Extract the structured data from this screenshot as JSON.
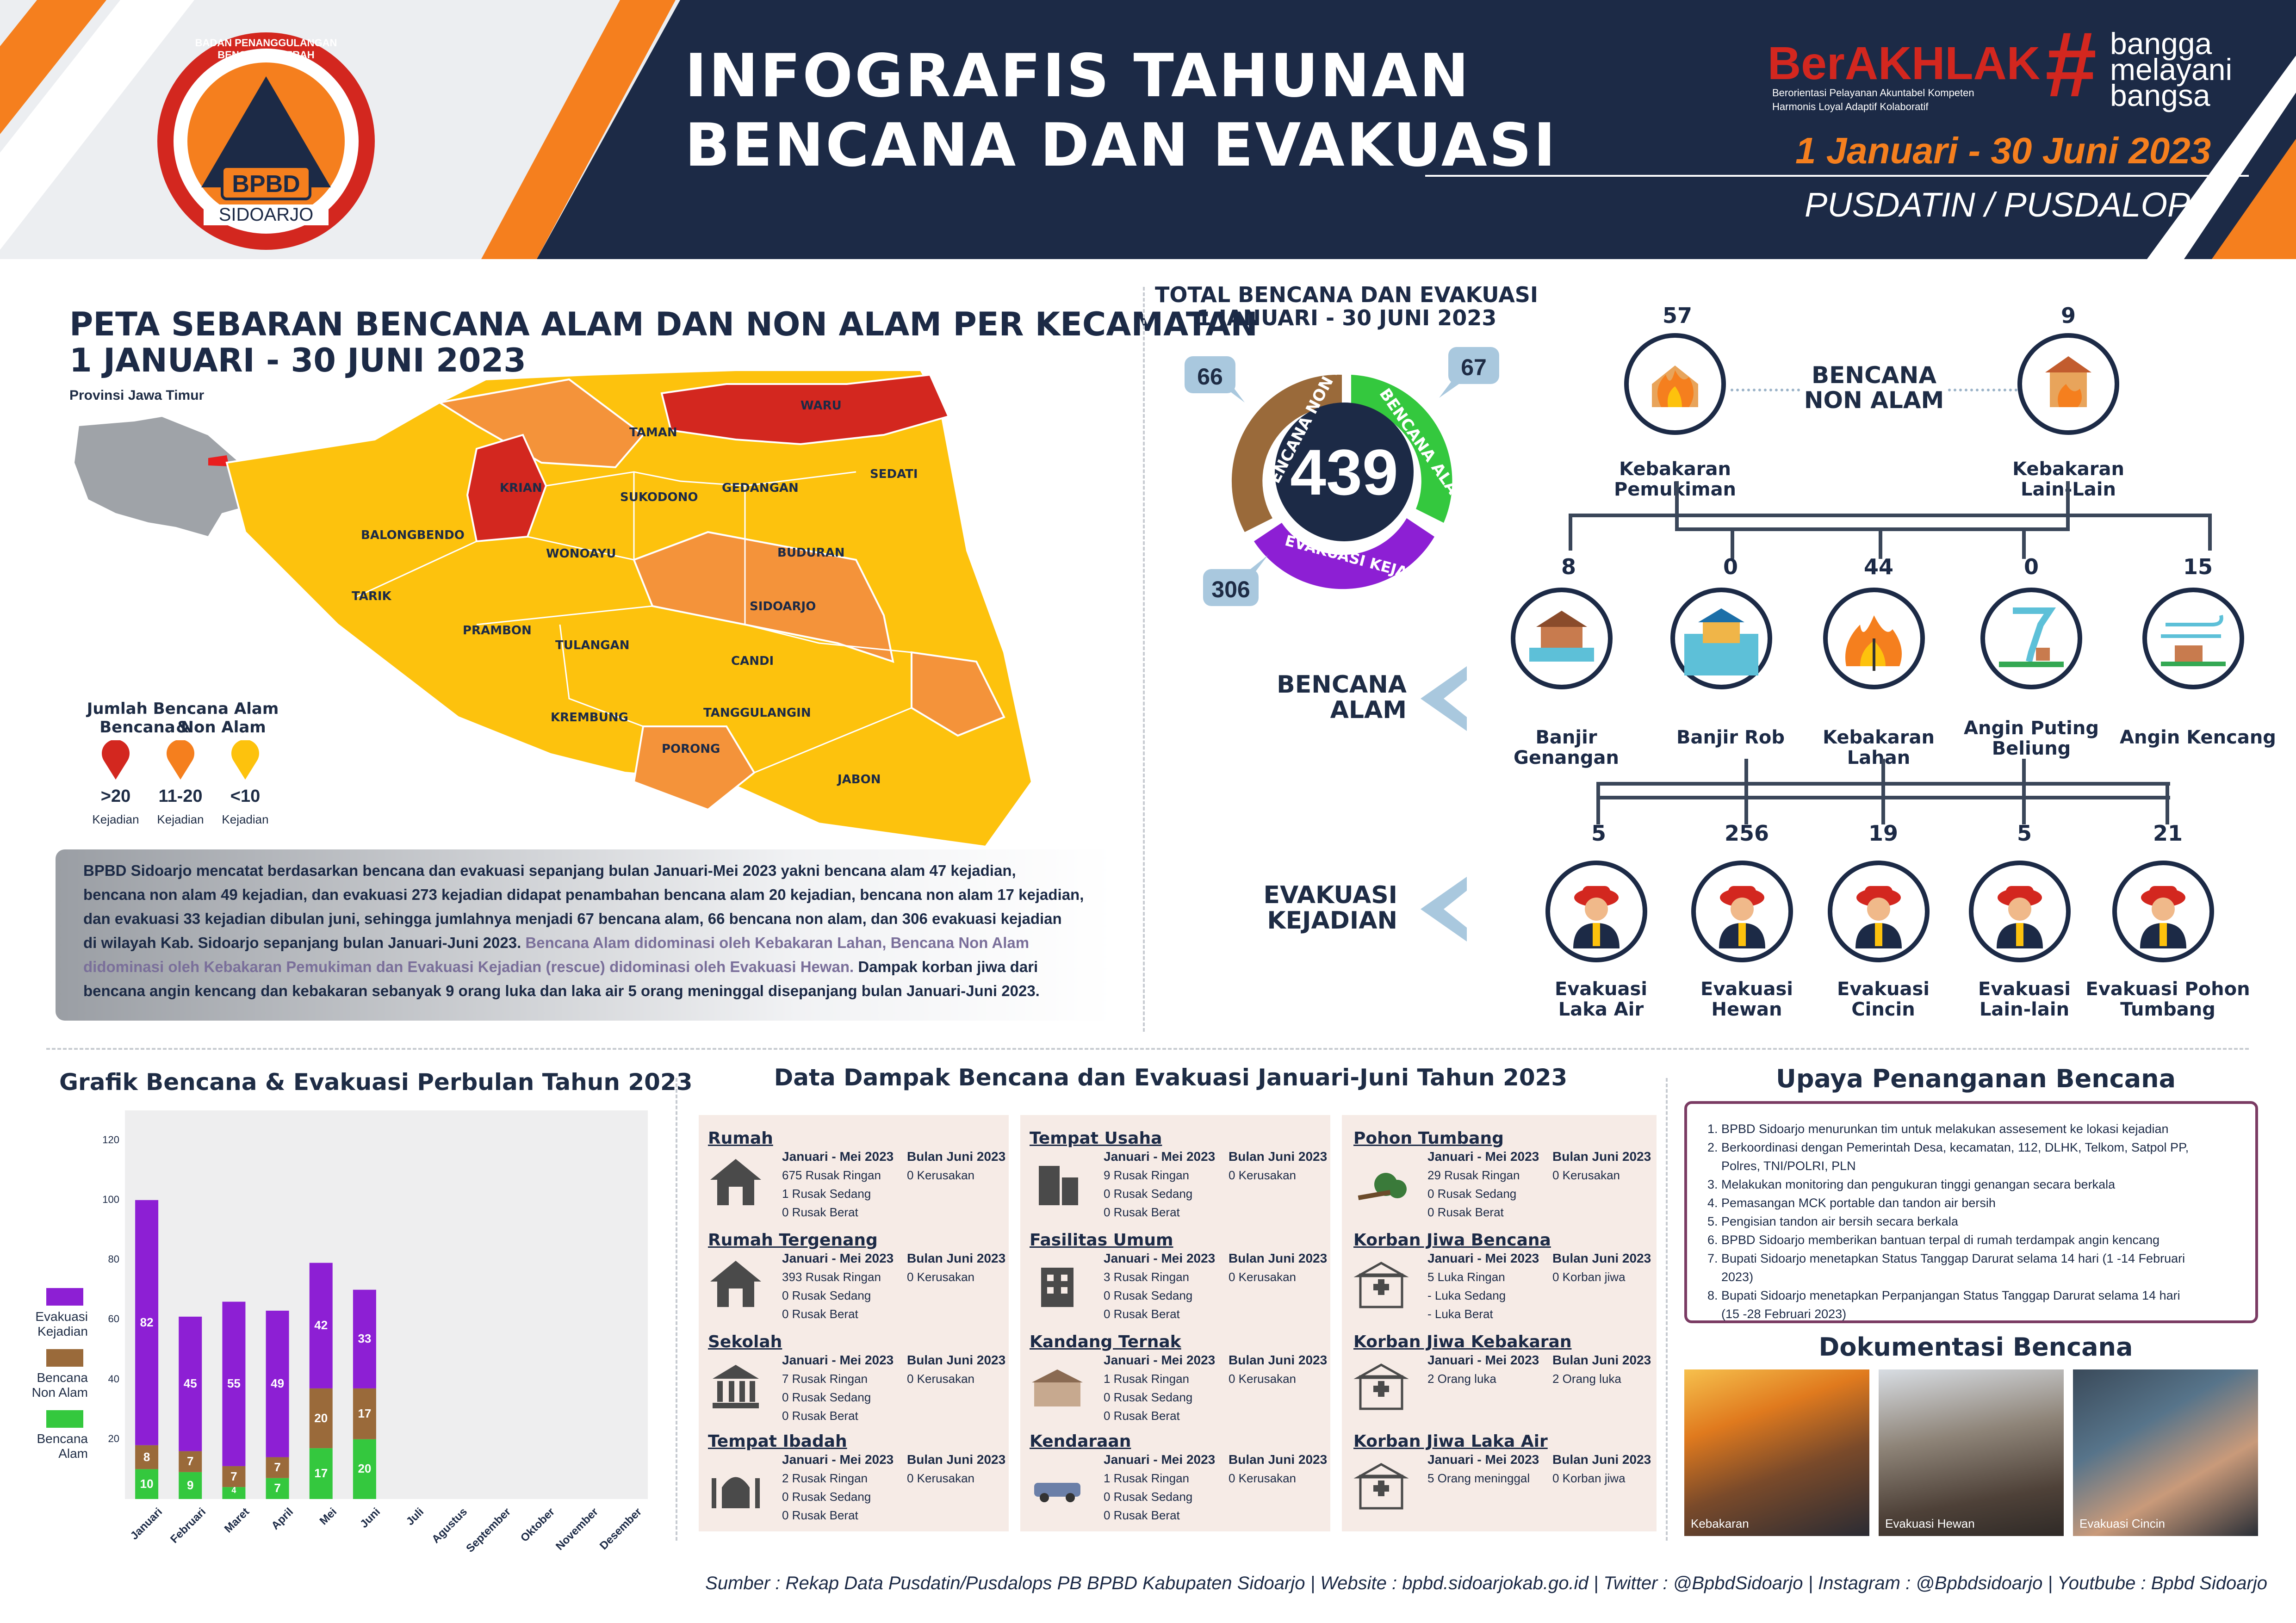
{
  "header": {
    "logo_ring": "BADAN PENANGGULANGAN BENCANA DAERAH",
    "logo_name": "BPBD",
    "logo_city": "SIDOARJO",
    "title_line1": "INFOGRAFIS TAHUNAN",
    "title_line2": "BENCANA DAN EVAKUASI",
    "berakhlak": "BerAKHLAK",
    "berakhlak_sub1": "Berorientasi Pelayanan Akuntabel Kompeten",
    "berakhlak_sub2": "Harmonis Loyal Adaptif Kolaboratif",
    "bangga_hash": "#",
    "bangga1": "bangga",
    "bangga2": "melayani",
    "bangga3": "bangsa",
    "period": "1 Januari - 30 Juni 2023",
    "division": "PUSDATIN / PUSDALOPS"
  },
  "map": {
    "title1": "PETA SEBARAN BENCANA ALAM DAN NON ALAM PER KECAMATAN",
    "title2": "1 JANUARI - 30 JUNI 2023",
    "province": "Provinsi Jawa Timur",
    "districts": [
      "TAMAN",
      "WARU",
      "SEDATI",
      "KRIAN",
      "SUKODONO",
      "GEDANGAN",
      "BALONGBENDO",
      "WONOAYU",
      "BUDURAN",
      "TARIK",
      "SIDOARJO",
      "PRAMBON",
      "TULANGAN",
      "CANDI",
      "KREMBUNG",
      "TANGGULANGIN",
      "PORONG",
      "JABON"
    ],
    "legend_title1": "Jumlah Bencana Alam &",
    "legend_title2": "Bencana Non Alam",
    "legend": [
      {
        "range": "&gt;20",
        "unit": "Kejadian",
        "color": "#d3271f"
      },
      {
        "range": "11-20",
        "unit": "Kejadian",
        "color": "#f57f1e"
      },
      {
        "range": "<10",
        "unit": "Kejadian",
        "color": "#fdc20d"
      }
    ],
    "colors": {
      "red": "#d3271f",
      "orange": "#f4933a",
      "yellow": "#fdc20d"
    }
  },
  "summary": {
    "p1": "BPBD Sidoarjo mencatat berdasarkan bencana dan evakuasi sepanjang bulan Januari-Mei 2023 yakni bencana alam 47 kejadian,",
    "p2": "bencana non alam 49 kejadian, dan evakuasi 273 kejadian didapat penambahan bencana alam 20 kejadian, bencana non alam 17 kejadian,",
    "p3": "dan evakuasi 33 kejadian dibulan juni, sehingga jumlahnya menjadi 67 bencana alam, 66 bencana non alam, dan 306 evakuasi kejadian",
    "p4a": "di wilayah Kab. Sidoarjo sepanjang bulan Januari-Juni 2023. ",
    "p4b": "Bencana Alam didominasi oleh Kebakaran Lahan, Bencana Non Alam",
    "p5a": "didominasi oleh Kebakaran Pemukiman dan Evakuasi Kejadian (rescue) didominasi oleh Evakuasi Hewan.",
    "p5b": " Dampak korban jiwa dari",
    "p6": "bencana angin kencang dan kebakaran sebanyak 9 orang luka dan laka air 5 orang meninggal disepanjang bulan Januari-Juni 2023."
  },
  "total": {
    "title1": "TOTAL BENCANA DAN EVAKUASI",
    "title2": "1 JANUARI - 30 JUNI 2023",
    "value": "439",
    "non_alam_label": "BENCANA NON ALAM",
    "alam_label": "BENCANA ALAM",
    "evakuasi_label": "EVAKUASI KEJADIAN",
    "non_alam": "66",
    "alam": "67",
    "evakuasi": "306",
    "colors": {
      "non_alam": "#9a6a3a",
      "alam": "#34c83e",
      "evakuasi": "#8d1fd4"
    }
  },
  "non_alam": {
    "label1": "BENCANA",
    "label2": "NON ALAM",
    "items": [
      {
        "count": "57",
        "name": "Kebakaran Pemukiman",
        "icon": "house-fire-icon"
      },
      {
        "count": "9",
        "name": "Kebakaran Lain-Lain",
        "icon": "building-fire-icon"
      }
    ]
  },
  "alam": {
    "label1": "BENCANA",
    "label2": "ALAM",
    "items": [
      {
        "count": "8",
        "name": "Banjir Genangan",
        "icon": "flood-icon"
      },
      {
        "count": "0",
        "name": "Banjir Rob",
        "icon": "tidal-flood-icon"
      },
      {
        "count": "44",
        "name": "Kebakaran Lahan",
        "icon": "land-fire-icon"
      },
      {
        "count": "0",
        "name": "Angin Puting",
        "name2": "Beliung",
        "icon": "tornado-icon"
      },
      {
        "count": "15",
        "name": "Angin Kencang",
        "icon": "wind-icon"
      }
    ]
  },
  "evakuasi": {
    "label1": "EVAKUASI",
    "label2": "KEJADIAN",
    "items": [
      {
        "count": "5",
        "name": "Evakuasi",
        "name2": "Laka Air"
      },
      {
        "count": "256",
        "name": "Evakuasi",
        "name2": "Hewan"
      },
      {
        "count": "19",
        "name": "Evakuasi",
        "name2": "Cincin"
      },
      {
        "count": "5",
        "name": "Evakuasi",
        "name2": "Lain-lain"
      },
      {
        "count": "21",
        "name": "Evakuasi Pohon",
        "name2": "Tumbang"
      }
    ]
  },
  "chart": {
    "title": "Grafik Bencana & Evakuasi Perbulan Tahun 2023"
  },
  "chart_data": {
    "type": "bar",
    "stacked": true,
    "categories": [
      "Januari",
      "Februari",
      "Maret",
      "April",
      "Mei",
      "Juni",
      "Juli",
      "Agustus",
      "September",
      "Oktober",
      "November",
      "Desember"
    ],
    "series": [
      {
        "name": "Bencana Alam",
        "color": "#34c83e",
        "values": [
          10,
          9,
          4,
          7,
          17,
          20,
          null,
          null,
          null,
          null,
          null,
          null
        ]
      },
      {
        "name": "Bencana Non Alam",
        "color": "#9a6a3a",
        "values": [
          8,
          7,
          7,
          7,
          20,
          17,
          null,
          null,
          null,
          null,
          null,
          null
        ]
      },
      {
        "name": "Evakuasi Kejadian",
        "color": "#8d1fd4",
        "values": [
          82,
          45,
          55,
          49,
          42,
          33,
          null,
          null,
          null,
          null,
          null,
          null
        ]
      }
    ],
    "ylim": [
      0,
      130
    ],
    "yticks": [
      20,
      40,
      60,
      80,
      100,
      120
    ],
    "legend_position": "left",
    "grid": false
  },
  "legend_labels": {
    "evakuasi1": "Evakuasi",
    "evakuasi2": "Kejadian",
    "nonalam1": "Bencana",
    "nonalam2": "Non Alam",
    "alam1": "Bencana",
    "alam2": "Alam"
  },
  "dampak": {
    "title": "Data Dampak Bencana dan Evakuasi Januari-Juni Tahun 2023",
    "head_a": "Januari - Mei 2023",
    "head_b": "Bulan Juni 2023",
    "col1": [
      {
        "title": "Rumah",
        "icon": "house-icon",
        "a": [
          "675 Rusak Ringan",
          "1 Rusak Sedang",
          "0 Rusak Berat"
        ],
        "b": [
          "0 Kerusakan"
        ]
      },
      {
        "title": "Rumah Tergenang",
        "icon": "house-icon",
        "a": [
          "393 Rusak Ringan",
          "0 Rusak Sedang",
          "0 Rusak Berat"
        ],
        "b": [
          "0 Kerusakan"
        ]
      },
      {
        "title": "Sekolah",
        "icon": "school-icon",
        "a": [
          "7 Rusak Ringan",
          "0 Rusak Sedang",
          "0 Rusak Berat"
        ],
        "b": [
          "0 Kerusakan"
        ]
      },
      {
        "title": "Tempat Ibadah",
        "icon": "mosque-icon",
        "a": [
          "2 Rusak Ringan",
          "0 Rusak Sedang",
          "0 Rusak Berat"
        ],
        "b": [
          "0 Kerusakan"
        ]
      }
    ],
    "col2": [
      {
        "title": "Tempat Usaha",
        "icon": "office-icon",
        "a": [
          "9 Rusak Ringan",
          "0 Rusak Sedang",
          "0 Rusak Berat"
        ],
        "b": [
          "0 Kerusakan"
        ]
      },
      {
        "title": "Fasilitas Umum",
        "icon": "building-icon",
        "a": [
          "3 Rusak Ringan",
          "0 Rusak Sedang",
          "0 Rusak Berat"
        ],
        "b": [
          "0 Kerusakan"
        ]
      },
      {
        "title": "Kandang Ternak",
        "icon": "barn-icon",
        "a": [
          "1 Rusak Ringan",
          "0 Rusak Sedang",
          "0 Rusak Berat"
        ],
        "b": [
          "0 Kerusakan"
        ]
      },
      {
        "title": "Kendaraan",
        "icon": "vehicle-icon",
        "a": [
          "1 Rusak Ringan",
          "0 Rusak Sedang",
          "0 Rusak Berat"
        ],
        "b": [
          "0 Kerusakan"
        ]
      }
    ],
    "col3": [
      {
        "title": "Pohon Tumbang",
        "icon": "fallen-tree-icon",
        "a": [
          "29 Rusak Ringan",
          "0 Rusak Sedang",
          "0 Rusak Berat"
        ],
        "b": [
          "0 Kerusakan"
        ]
      },
      {
        "title": "Korban Jiwa Bencana",
        "icon": "hospital-icon",
        "a": [
          "5 Luka Ringan",
          "- Luka Sedang",
          "- Luka Berat"
        ],
        "b": [
          "0 Korban jiwa"
        ]
      },
      {
        "title": "Korban Jiwa Kebakaran",
        "icon": "hospital-icon",
        "a": [
          "2 Orang luka"
        ],
        "b": [
          "2 Orang luka"
        ]
      },
      {
        "title": "Korban Jiwa Laka Air",
        "icon": "hospital-icon",
        "a": [
          "5 Orang meninggal"
        ],
        "b": [
          "0 Korban jiwa"
        ]
      }
    ]
  },
  "upaya": {
    "title": "Upaya Penanganan Bencana",
    "items": [
      "1. BPBD Sidoarjo menurunkan tim untuk melakukan assesement ke lokasi kejadian",
      "2. Berkoordinasi dengan Pemerintah Desa, kecamatan, 112, DLHK, Telkom, Satpol PP,",
      "    Polres, TNI/POLRI, PLN",
      "3. Melakukan monitoring dan pengukuran tinggi genangan secara berkala",
      "4. Pemasangan MCK portable dan tandon air bersih",
      "5. Pengisian tandon air bersih secara berkala",
      "6. BPBD Sidoarjo memberikan bantuan terpal di rumah terdampak angin kencang",
      "7. Bupati Sidoarjo menetapkan Status Tanggap Darurat selama 14 hari (1 -14 Februari",
      "    2023)",
      "8. Bupati Sidoarjo menetapkan Perpanjangan Status Tanggap Darurat selama 14 hari",
      "    (15 -28 Februari 2023)"
    ]
  },
  "dokumentasi": {
    "title": "Dokumentasi Bencana",
    "photos": [
      "Kebakaran",
      "Evakuasi Hewan",
      "Evakuasi Cincin"
    ]
  },
  "footer": "Sumber : Rekap Data Pusdatin/Pusdalops PB BPBD Kabupaten Sidoarjo | Website : bpbd.sidoarjokab.go.id | Twitter : @BpbdSidoarjo | Instagram : @Bpbdsidoarjo | Youtbube : Bpbd Sidoarjo"
}
